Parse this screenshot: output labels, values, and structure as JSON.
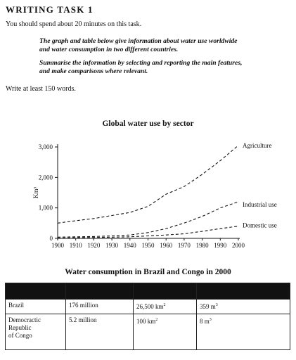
{
  "page": {
    "heading": "WRITING TASK 1",
    "time_note": "You should spend about 20 minutes on this task.",
    "instruction_1_line1": "The graph and table below give information about water use worldwide",
    "instruction_1_line2": "and water consumption in two different countries.",
    "instruction_2_line1": "Summarise the information by selecting and reporting the main features,",
    "instruction_2_line2": "and make comparisons where relevant.",
    "word_note": "Write at least 150 words."
  },
  "chart_data": {
    "type": "line",
    "title": "Global water use by sector",
    "xlabel": "",
    "ylabel": "Km³",
    "x": [
      1900,
      1910,
      1920,
      1930,
      1940,
      1950,
      1960,
      1970,
      1980,
      1990,
      2000
    ],
    "xlim": [
      1900,
      2000
    ],
    "ylim": [
      0,
      3000
    ],
    "y_ticks": [
      0,
      1000,
      2000,
      3000
    ],
    "y_tick_labels": [
      "0",
      "1,000",
      "2,000",
      "3,000"
    ],
    "grid": false,
    "legend": "inline-right",
    "series": [
      {
        "name": "Agriculture",
        "values": [
          500,
          580,
          650,
          750,
          850,
          1050,
          1450,
          1700,
          2100,
          2550,
          3050
        ],
        "dash": "dashed"
      },
      {
        "name": "Industrial use",
        "values": [
          40,
          50,
          60,
          80,
          110,
          190,
          320,
          500,
          720,
          1000,
          1200
        ],
        "dash": "dashed"
      },
      {
        "name": "Domestic use",
        "values": [
          10,
          20,
          30,
          40,
          50,
          80,
          110,
          150,
          230,
          320,
          400
        ],
        "dash": "dashed"
      }
    ]
  },
  "table": {
    "title": "Water consumption in Brazil and Congo in 2000",
    "rows": [
      {
        "country": "Brazil",
        "population": "176 million",
        "irrigated_land": "26,500 km",
        "irrigated_sup": "2",
        "water_per_person": "359 m",
        "water_sup": "3"
      },
      {
        "country_l1": "Democractic",
        "country_l2": "Republic",
        "country_l3": "of Congo",
        "population": "5.2 million",
        "irrigated_land": "100 km",
        "irrigated_sup": "2",
        "water_per_person": "8 m",
        "water_sup": "3"
      }
    ]
  }
}
